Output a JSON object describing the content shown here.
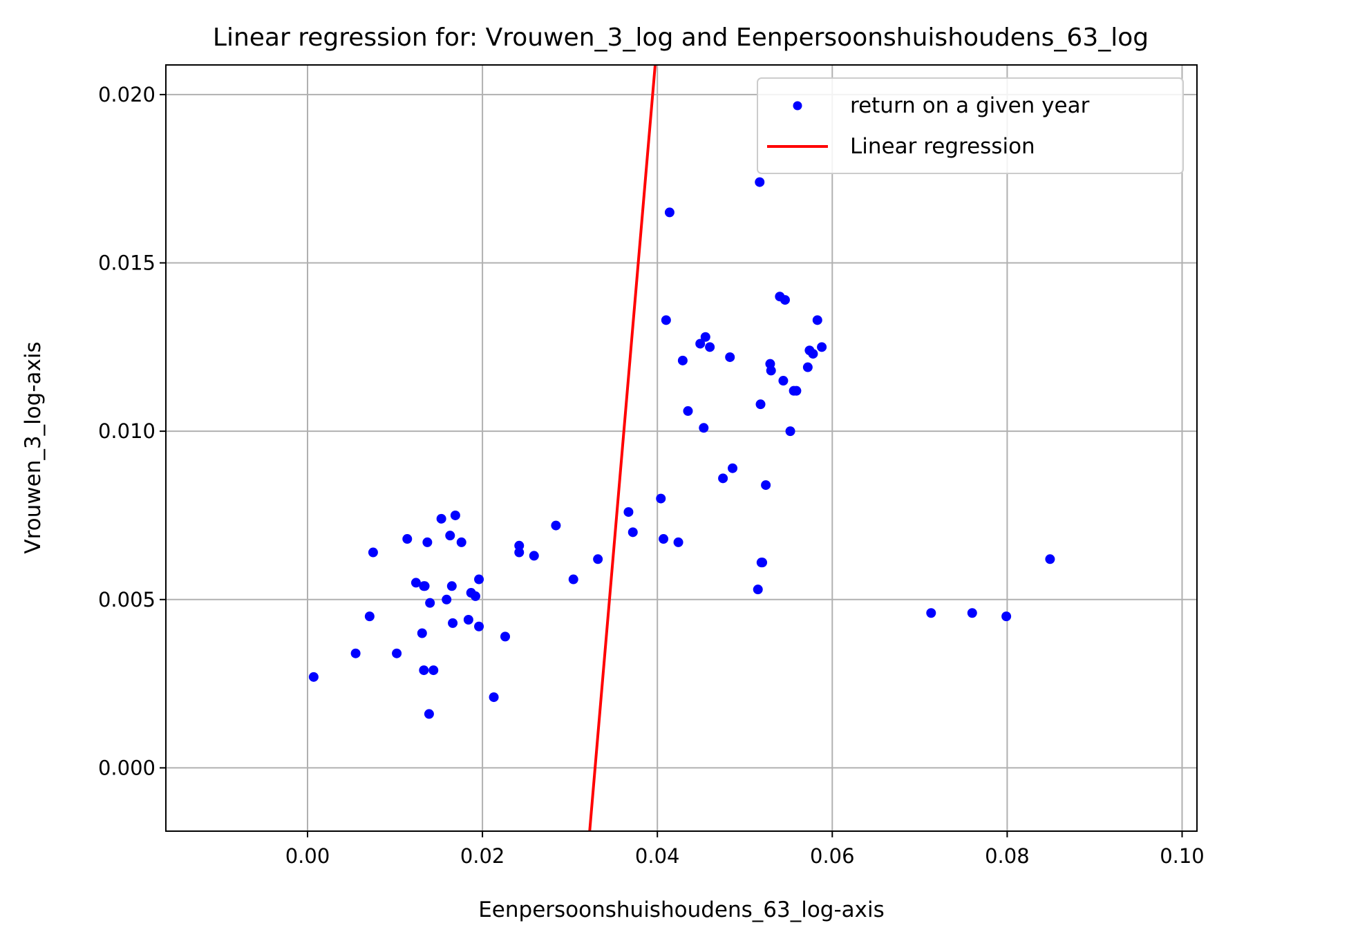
{
  "chart_data": {
    "type": "scatter",
    "title": "Linear regression for: Vrouwen_3_log and Eenpersoonshuishoudens_63_log",
    "xlabel": "Eenpersoonshuishoudens_63_log-axis",
    "ylabel": "Vrouwen_3_log-axis",
    "xlim": [
      -0.0162,
      0.1017
    ],
    "ylim": [
      -0.00188,
      0.02088
    ],
    "xticks": [
      0.0,
      0.02,
      0.04,
      0.06,
      0.08,
      0.1
    ],
    "yticks": [
      0.0,
      0.005,
      0.01,
      0.015,
      0.02
    ],
    "xtick_labels": [
      "0.00",
      "0.02",
      "0.04",
      "0.06",
      "0.08",
      "0.10"
    ],
    "ytick_labels": [
      "0.000",
      "0.005",
      "0.010",
      "0.015",
      "0.020"
    ],
    "grid": true,
    "legend_position": "top-right",
    "series": [
      {
        "name": "return on a given year",
        "kind": "scatter",
        "color": "#0000ff",
        "x": [
          0.0007,
          0.0055,
          0.0071,
          0.0075,
          0.0102,
          0.0114,
          0.0124,
          0.0131,
          0.0133,
          0.0133,
          0.0134,
          0.0137,
          0.0139,
          0.014,
          0.0144,
          0.0153,
          0.0159,
          0.0163,
          0.0165,
          0.0166,
          0.0169,
          0.0176,
          0.0184,
          0.0187,
          0.0192,
          0.0196,
          0.0196,
          0.0213,
          0.0226,
          0.0242,
          0.0242,
          0.0259,
          0.0284,
          0.0304,
          0.0332,
          0.0367,
          0.0372,
          0.0404,
          0.0407,
          0.041,
          0.0414,
          0.0424,
          0.0429,
          0.0435,
          0.0449,
          0.0453,
          0.0455,
          0.046,
          0.0475,
          0.0483,
          0.0486,
          0.0515,
          0.0517,
          0.0518,
          0.0519,
          0.052,
          0.0524,
          0.0529,
          0.053,
          0.054,
          0.0544,
          0.0546,
          0.0552,
          0.0556,
          0.0559,
          0.0572,
          0.0574,
          0.0578,
          0.0583,
          0.0588,
          0.0713,
          0.076,
          0.0799,
          0.0849
        ],
        "y": [
          0.0027,
          0.0034,
          0.0045,
          0.0064,
          0.0034,
          0.0068,
          0.0055,
          0.004,
          0.0029,
          0.0054,
          0.0054,
          0.0067,
          0.0016,
          0.0049,
          0.0029,
          0.0074,
          0.005,
          0.0069,
          0.0054,
          0.0043,
          0.0075,
          0.0067,
          0.0044,
          0.0052,
          0.0051,
          0.0056,
          0.0042,
          0.0021,
          0.0039,
          0.0066,
          0.0064,
          0.0063,
          0.0072,
          0.0056,
          0.0062,
          0.0076,
          0.007,
          0.008,
          0.0068,
          0.0133,
          0.0165,
          0.0067,
          0.0121,
          0.0106,
          0.0126,
          0.0101,
          0.0128,
          0.0125,
          0.0086,
          0.0122,
          0.0089,
          0.0053,
          0.0174,
          0.0108,
          0.0061,
          0.0061,
          0.0084,
          0.012,
          0.0118,
          0.014,
          0.0115,
          0.0139,
          0.01,
          0.0112,
          0.0112,
          0.0119,
          0.0124,
          0.0123,
          0.0133,
          0.0125,
          0.0046,
          0.0046,
          0.0045,
          0.0062
        ]
      },
      {
        "name": "Linear regression",
        "kind": "line",
        "color": "#ff0000",
        "x": [
          0.03226,
          0.03975
        ],
        "y": [
          -0.00188,
          0.02088
        ]
      }
    ]
  }
}
